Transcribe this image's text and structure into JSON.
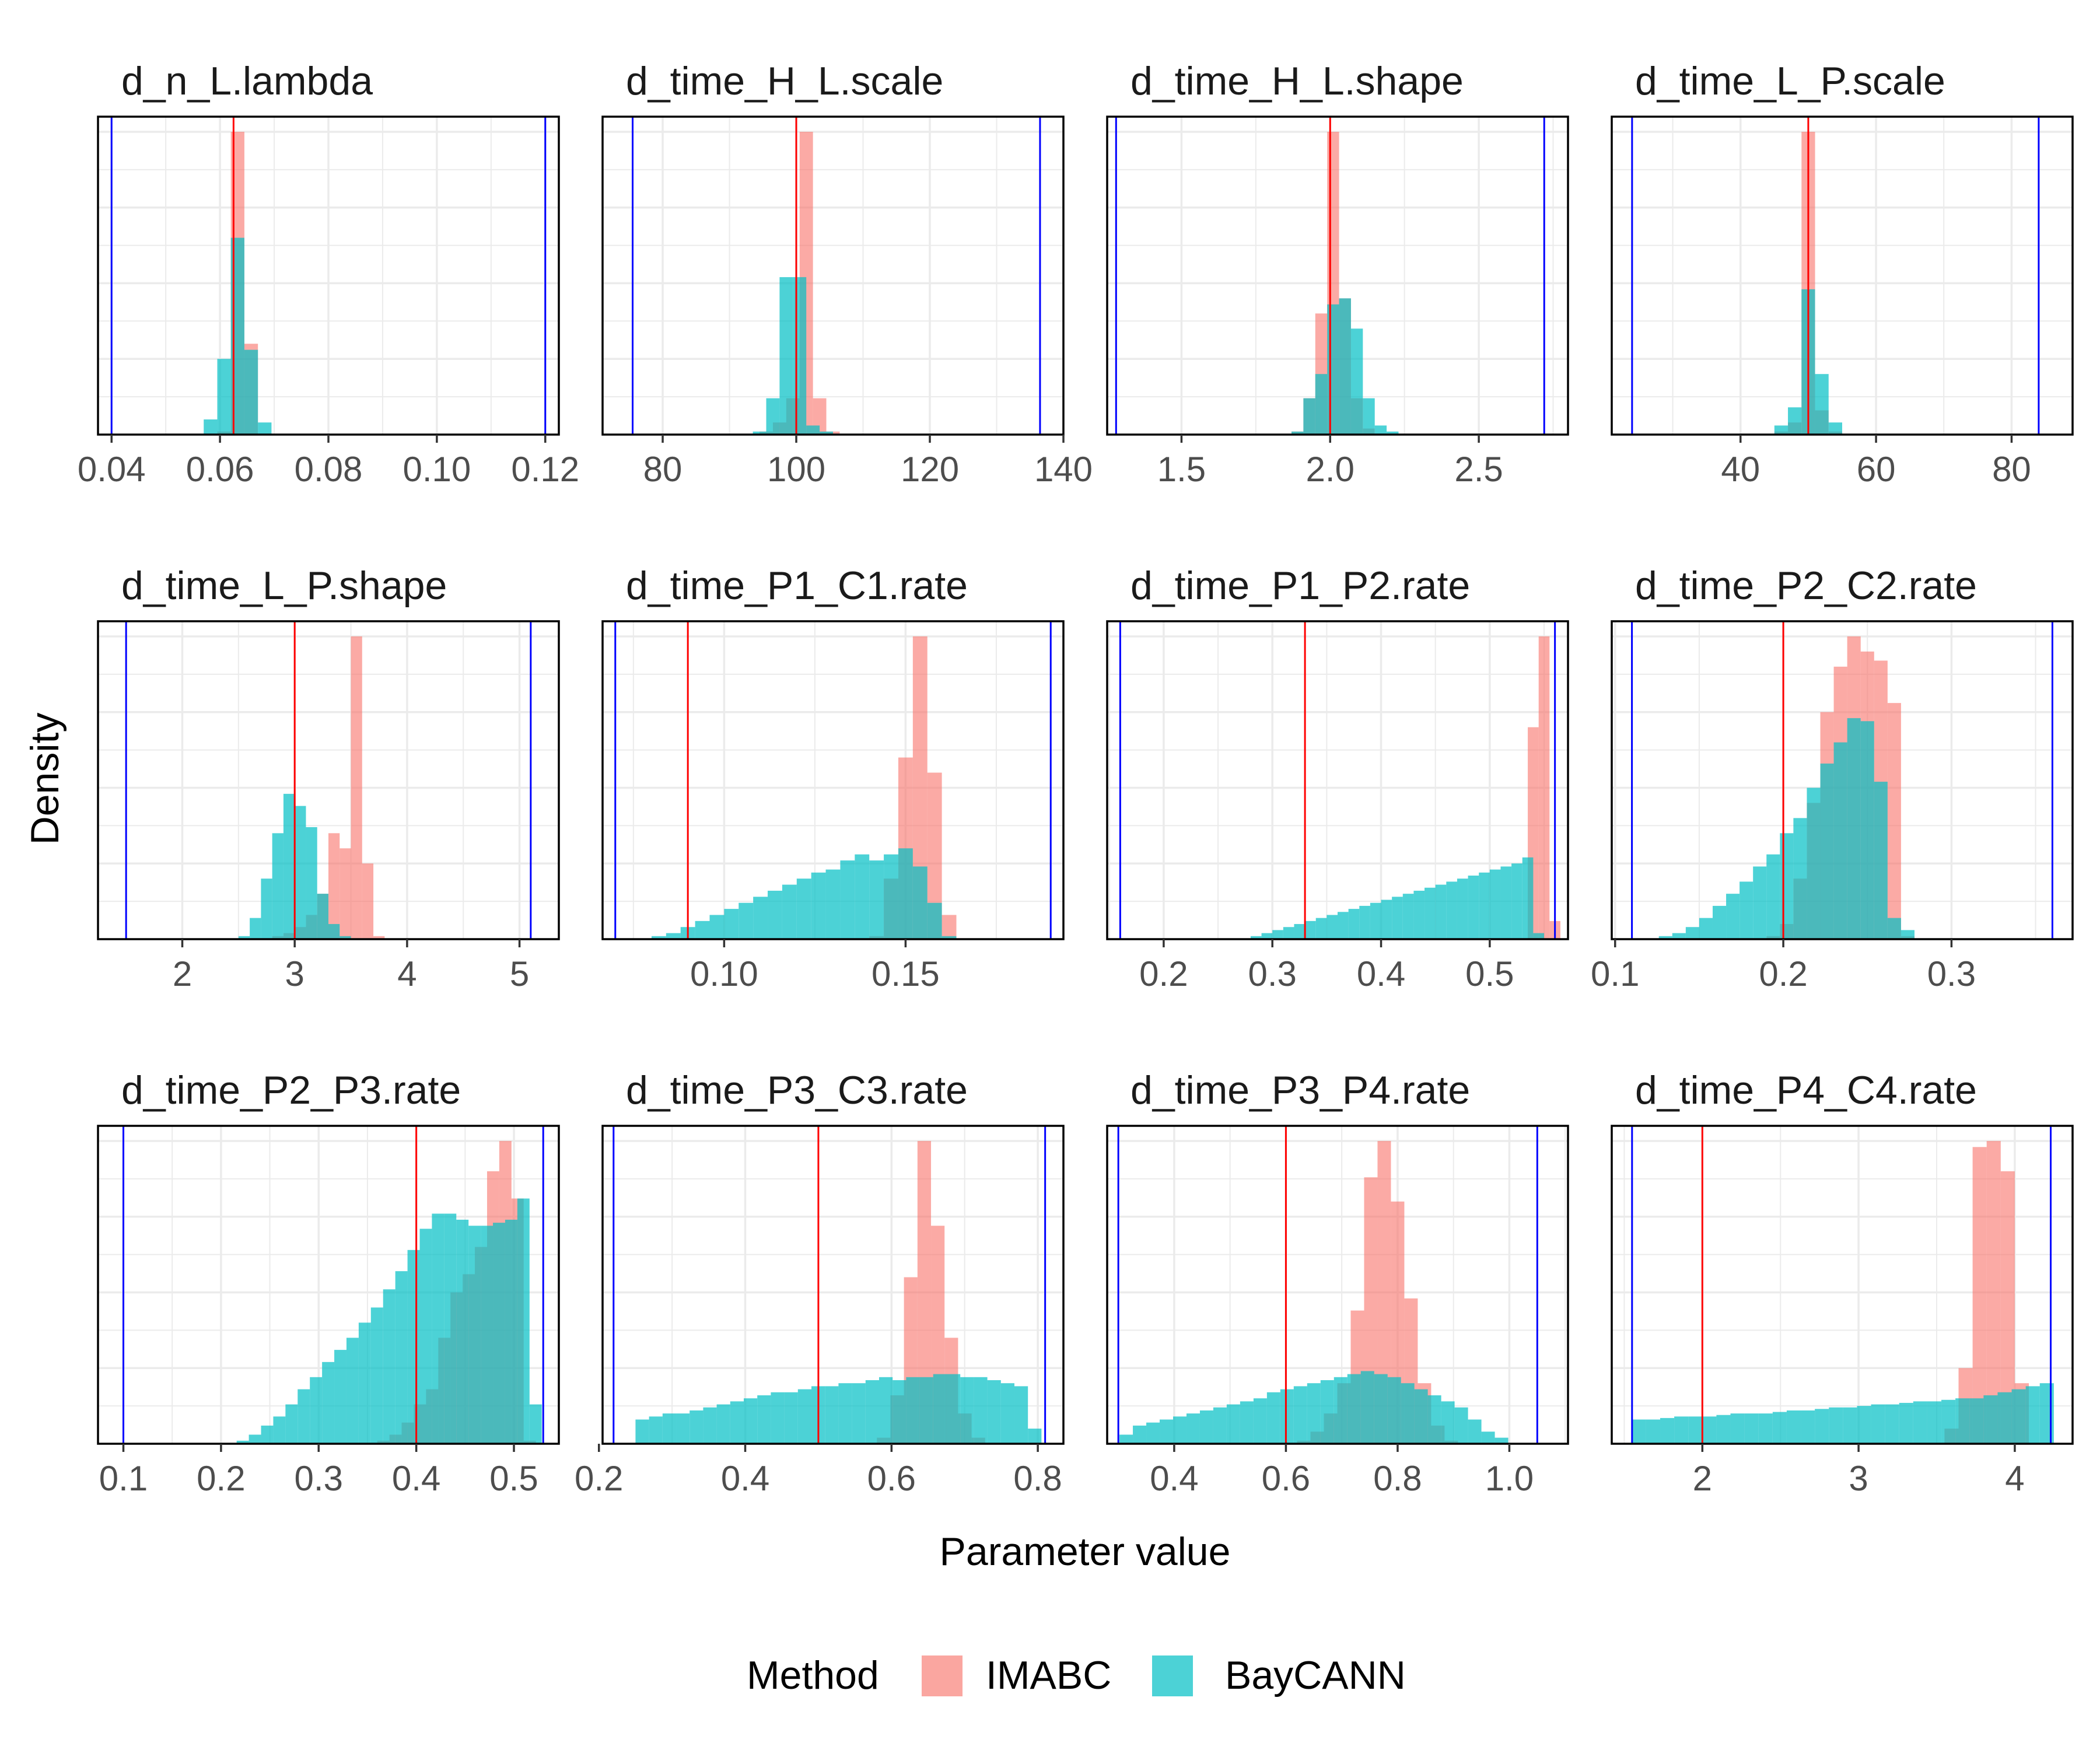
{
  "chart_data": {
    "type": "histogram",
    "facet_layout": "3x4",
    "xlabel": "Parameter value",
    "ylabel": "Density",
    "legend": {
      "title": "Method",
      "position": "bottom",
      "entries": [
        {
          "name": "IMABC",
          "color": "#F8766D"
        },
        {
          "name": "BayCANN",
          "color": "#00BFC4"
        }
      ]
    },
    "colors": {
      "imabc": "#F8766D",
      "baycann": "#00BFC4",
      "true_value_line": "#ff0000",
      "prior_bound_line": "#0000ff",
      "grid": "#ebebeb",
      "panel_border": "#000000"
    },
    "panels": [
      {
        "title": "d_n_L.lambda",
        "xlim": [
          0.0375,
          0.1225
        ],
        "xticks": [
          0.04,
          0.06,
          0.08,
          0.1,
          0.12
        ],
        "xtick_labels": [
          "0.04",
          "0.06",
          "0.08",
          "0.10",
          "0.12"
        ],
        "true_value": 0.0625,
        "prior_bounds": [
          0.04,
          0.12
        ],
        "ymax": 1.05,
        "imabc": {
          "start": 0.0595,
          "width": 0.0025,
          "heights": [
            0.01,
            1.0,
            0.3,
            0.0
          ]
        },
        "baycann": {
          "start": 0.057,
          "width": 0.0025,
          "heights": [
            0.05,
            0.25,
            0.65,
            0.28,
            0.04
          ]
        }
      },
      {
        "title": "d_time_H_L.scale",
        "xlim": [
          71,
          140
        ],
        "xticks": [
          80,
          100,
          120,
          140
        ],
        "xtick_labels": [
          "80",
          "100",
          "120",
          "140"
        ],
        "true_value": 100,
        "prior_bounds": [
          75.5,
          136.5
        ],
        "ymax": 1.05,
        "imabc": {
          "start": 94.5,
          "width": 2.0,
          "heights": [
            0.01,
            0.04,
            0.12,
            1.0,
            0.12,
            0.01
          ]
        },
        "baycann": {
          "start": 93.5,
          "width": 2.0,
          "heights": [
            0.01,
            0.12,
            0.52,
            0.52,
            0.03,
            0.01
          ]
        }
      },
      {
        "title": "d_time_H_L.shape",
        "xlim": [
          1.25,
          2.8
        ],
        "xticks": [
          1.5,
          2.0,
          2.5
        ],
        "xtick_labels": [
          "1.5",
          "2.0",
          "2.5"
        ],
        "true_value": 2.0,
        "prior_bounds": [
          1.28,
          2.72
        ],
        "ymax": 1.05,
        "imabc": {
          "start": 1.87,
          "width": 0.04,
          "heights": [
            0.01,
            0.12,
            0.4,
            1.0,
            0.45,
            0.12,
            0.02
          ]
        },
        "baycann": {
          "start": 1.87,
          "width": 0.04,
          "heights": [
            0.01,
            0.12,
            0.2,
            0.43,
            0.45,
            0.35,
            0.12,
            0.03,
            0.01
          ]
        }
      },
      {
        "title": "d_time_L_P.scale",
        "xlim": [
          21,
          89
        ],
        "xticks": [
          40,
          60,
          80
        ],
        "xtick_labels": [
          "40",
          "60",
          "80"
        ],
        "true_value": 50,
        "prior_bounds": [
          24,
          84
        ],
        "ymax": 1.05,
        "imabc": {
          "start": 45,
          "width": 2.0,
          "heights": [
            0.01,
            0.04,
            1.0,
            0.08,
            0.01
          ]
        },
        "baycann": {
          "start": 45,
          "width": 2.0,
          "heights": [
            0.03,
            0.09,
            0.48,
            0.2,
            0.04
          ]
        }
      },
      {
        "title": "d_time_L_P.shape",
        "xlim": [
          1.25,
          5.35
        ],
        "xticks": [
          2,
          3,
          4,
          5
        ],
        "xtick_labels": [
          "2",
          "3",
          "4",
          "5"
        ],
        "true_value": 3.0,
        "prior_bounds": [
          1.5,
          5.1
        ],
        "ymax": 1.05,
        "imabc": {
          "start": 2.6,
          "width": 0.1,
          "heights": [
            0.0,
            0.0,
            0.01,
            0.02,
            0.04,
            0.08,
            0.15,
            0.35,
            0.3,
            1.0,
            0.25,
            0.01
          ]
        },
        "baycann": {
          "start": 2.5,
          "width": 0.1,
          "heights": [
            0.01,
            0.07,
            0.2,
            0.35,
            0.48,
            0.44,
            0.37,
            0.15,
            0.05,
            0.01
          ]
        }
      },
      {
        "title": "d_time_P1_C1.rate",
        "xlim": [
          0.0665,
          0.1935
        ],
        "xticks": [
          0.1,
          0.15
        ],
        "xtick_labels": [
          "0.10",
          "0.15"
        ],
        "true_value": 0.09,
        "prior_bounds": [
          0.07,
          0.19
        ],
        "ymax": 1.05,
        "imabc": {
          "start": 0.14,
          "width": 0.004,
          "heights": [
            0.01,
            0.2,
            0.6,
            1.0,
            0.55,
            0.08
          ]
        },
        "baycann": {
          "start": 0.08,
          "width": 0.004,
          "heights": [
            0.01,
            0.02,
            0.04,
            0.06,
            0.08,
            0.1,
            0.12,
            0.14,
            0.16,
            0.18,
            0.2,
            0.22,
            0.23,
            0.26,
            0.28,
            0.26,
            0.28,
            0.3,
            0.24,
            0.12,
            0.01
          ]
        }
      },
      {
        "title": "d_time_P1_P2.rate",
        "xlim": [
          0.148,
          0.572
        ],
        "xticks": [
          0.2,
          0.3,
          0.4,
          0.5
        ],
        "xtick_labels": [
          "0.2",
          "0.3",
          "0.4",
          "0.5"
        ],
        "true_value": 0.33,
        "prior_bounds": [
          0.16,
          0.56
        ],
        "ymax": 1.05,
        "imabc": {
          "start": 0.535,
          "width": 0.01,
          "heights": [
            0.7,
            1.0,
            0.06
          ]
        },
        "baycann": {
          "start": 0.28,
          "width": 0.01,
          "heights": [
            0.01,
            0.02,
            0.03,
            0.04,
            0.05,
            0.06,
            0.07,
            0.08,
            0.09,
            0.1,
            0.11,
            0.12,
            0.13,
            0.14,
            0.15,
            0.16,
            0.17,
            0.18,
            0.19,
            0.2,
            0.21,
            0.22,
            0.23,
            0.24,
            0.25,
            0.27,
            0.02
          ]
        }
      },
      {
        "title": "d_time_P2_C2.rate",
        "xlim": [
          0.098,
          0.372
        ],
        "xticks": [
          0.1,
          0.2,
          0.3
        ],
        "xtick_labels": [
          "0.1",
          "0.2",
          "0.3"
        ],
        "true_value": 0.2,
        "prior_bounds": [
          0.11,
          0.36
        ],
        "ymax": 1.05,
        "imabc": {
          "start": 0.19,
          "width": 0.008,
          "heights": [
            0.01,
            0.05,
            0.2,
            0.45,
            0.75,
            0.9,
            1.0,
            0.95,
            0.92,
            0.78,
            0.01
          ]
        },
        "baycann": {
          "start": 0.126,
          "width": 0.008,
          "heights": [
            0.01,
            0.02,
            0.04,
            0.07,
            0.11,
            0.15,
            0.19,
            0.24,
            0.28,
            0.35,
            0.4,
            0.5,
            0.58,
            0.65,
            0.73,
            0.72,
            0.52,
            0.07,
            0.03
          ]
        }
      },
      {
        "title": "d_time_P2_P3.rate",
        "xlim": [
          0.074,
          0.546
        ],
        "xticks": [
          0.1,
          0.2,
          0.3,
          0.4,
          0.5
        ],
        "xtick_labels": [
          "0.1",
          "0.2",
          "0.3",
          "0.4",
          "0.5"
        ],
        "true_value": 0.4,
        "prior_bounds": [
          0.1,
          0.53
        ],
        "ymax": 1.05,
        "imabc": {
          "start": 0.36,
          "width": 0.0125,
          "heights": [
            0.01,
            0.03,
            0.07,
            0.13,
            0.18,
            0.35,
            0.5,
            0.56,
            0.65,
            0.9,
            1.0,
            0.81,
            0.01
          ]
        },
        "baycann": {
          "start": 0.216,
          "width": 0.0125,
          "heights": [
            0.01,
            0.03,
            0.06,
            0.09,
            0.13,
            0.18,
            0.22,
            0.27,
            0.31,
            0.35,
            0.4,
            0.45,
            0.51,
            0.57,
            0.64,
            0.71,
            0.76,
            0.76,
            0.74,
            0.72,
            0.72,
            0.73,
            0.74,
            0.81,
            0.13
          ]
        }
      },
      {
        "title": "d_time_P3_C3.rate",
        "xlim": [
          0.205,
          0.835
        ],
        "xticks": [
          0.2,
          0.4,
          0.6,
          0.8
        ],
        "xtick_labels": [
          "0.2",
          "0.4",
          "0.6",
          "0.8"
        ],
        "true_value": 0.5,
        "prior_bounds": [
          0.22,
          0.81
        ],
        "ymax": 1.05,
        "imabc": {
          "start": 0.58,
          "width": 0.0185,
          "heights": [
            0.02,
            0.16,
            0.55,
            1.0,
            0.72,
            0.35,
            0.1,
            0.02
          ]
        },
        "baycann": {
          "start": 0.25,
          "width": 0.0185,
          "heights": [
            0.08,
            0.09,
            0.1,
            0.1,
            0.11,
            0.12,
            0.13,
            0.14,
            0.15,
            0.16,
            0.17,
            0.17,
            0.18,
            0.19,
            0.19,
            0.2,
            0.2,
            0.21,
            0.22,
            0.21,
            0.22,
            0.22,
            0.23,
            0.23,
            0.22,
            0.22,
            0.21,
            0.2,
            0.19,
            0.05
          ]
        }
      },
      {
        "title": "d_time_P3_P4.rate",
        "xlim": [
          0.28,
          1.105
        ],
        "xticks": [
          0.4,
          0.6,
          0.8,
          1.0
        ],
        "xtick_labels": [
          "0.4",
          "0.6",
          "0.8",
          "1.0"
        ],
        "true_value": 0.6,
        "prior_bounds": [
          0.3,
          1.05
        ],
        "ymax": 1.05,
        "imabc": {
          "start": 0.62,
          "width": 0.024,
          "heights": [
            0.01,
            0.04,
            0.1,
            0.2,
            0.44,
            0.88,
            1.0,
            0.8,
            0.48,
            0.2,
            0.06,
            0.01
          ]
        },
        "baycann": {
          "start": 0.302,
          "width": 0.024,
          "heights": [
            0.03,
            0.06,
            0.07,
            0.08,
            0.09,
            0.1,
            0.11,
            0.12,
            0.13,
            0.14,
            0.15,
            0.17,
            0.18,
            0.19,
            0.2,
            0.21,
            0.22,
            0.23,
            0.24,
            0.23,
            0.22,
            0.2,
            0.18,
            0.16,
            0.14,
            0.12,
            0.08,
            0.04,
            0.02
          ]
        }
      },
      {
        "title": "d_time_P4_C4.rate",
        "xlim": [
          1.42,
          4.37
        ],
        "xticks": [
          2,
          3,
          4
        ],
        "xtick_labels": [
          "2",
          "3",
          "4"
        ],
        "true_value": 2.0,
        "prior_bounds": [
          1.55,
          4.23
        ],
        "ymax": 1.05,
        "imabc": {
          "start": 3.55,
          "width": 0.09,
          "heights": [
            0.05,
            0.25,
            0.98,
            1.0,
            0.9,
            0.2
          ]
        },
        "baycann": {
          "start": 1.55,
          "width": 0.09,
          "heights": [
            0.08,
            0.08,
            0.085,
            0.09,
            0.09,
            0.09,
            0.095,
            0.1,
            0.1,
            0.1,
            0.105,
            0.11,
            0.11,
            0.115,
            0.12,
            0.12,
            0.125,
            0.13,
            0.13,
            0.135,
            0.14,
            0.14,
            0.145,
            0.15,
            0.15,
            0.16,
            0.17,
            0.18,
            0.19,
            0.2
          ]
        }
      }
    ]
  }
}
